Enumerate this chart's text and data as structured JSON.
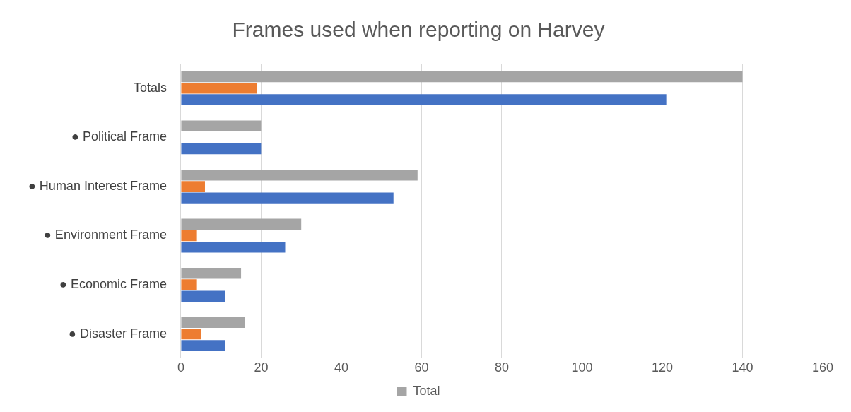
{
  "chart_data": {
    "type": "bar",
    "orientation": "horizontal",
    "title": "Frames used when reporting on Harvey",
    "categories": [
      "Totals",
      "● Political Frame",
      "● Human Interest Frame",
      "● Environment Frame",
      "● Economic Frame",
      "● Disaster Frame"
    ],
    "series": [
      {
        "name": "Total",
        "color": "#a5a5a5",
        "values": [
          140,
          20,
          59,
          30,
          15,
          16
        ]
      },
      {
        "color": "#ed7d31",
        "values": [
          19,
          0,
          6,
          4,
          4,
          5
        ]
      },
      {
        "color": "#4472c4",
        "values": [
          121,
          20,
          53,
          26,
          11,
          11
        ]
      }
    ],
    "xlim": [
      0,
      160
    ],
    "xticks": [
      0,
      20,
      40,
      60,
      80,
      100,
      120,
      140,
      160
    ],
    "grid": "x",
    "legend": "bottom"
  }
}
